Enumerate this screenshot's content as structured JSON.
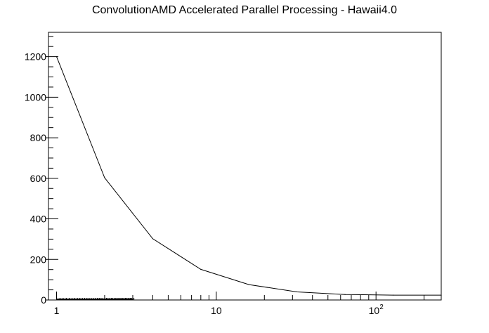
{
  "chart_data": {
    "type": "line",
    "title": "ConvolutionAMD Accelerated Parallel Processing - Hawaii4.0",
    "xlabel": "",
    "ylabel": "",
    "xscale": "log",
    "xlim": [
      0.89,
      256
    ],
    "ylim": [
      0,
      1320
    ],
    "x_tick_labels": [
      {
        "value": 1,
        "label": "1"
      },
      {
        "value": 10,
        "label": "10"
      },
      {
        "value": 100,
        "base": "10",
        "exp": "2"
      }
    ],
    "y_tick_labels": [
      "0",
      "200",
      "400",
      "600",
      "800",
      "1000",
      "1200"
    ],
    "y_ticks": [
      0,
      200,
      400,
      600,
      800,
      1000,
      1200
    ],
    "grid": false,
    "legend": "none",
    "line_color": "#000000",
    "series": [
      {
        "x": [
          1,
          2,
          4,
          8,
          16,
          32,
          64,
          128,
          256
        ],
        "values": [
          1200,
          603,
          302,
          151,
          76,
          40,
          27,
          24,
          24
        ]
      }
    ]
  }
}
